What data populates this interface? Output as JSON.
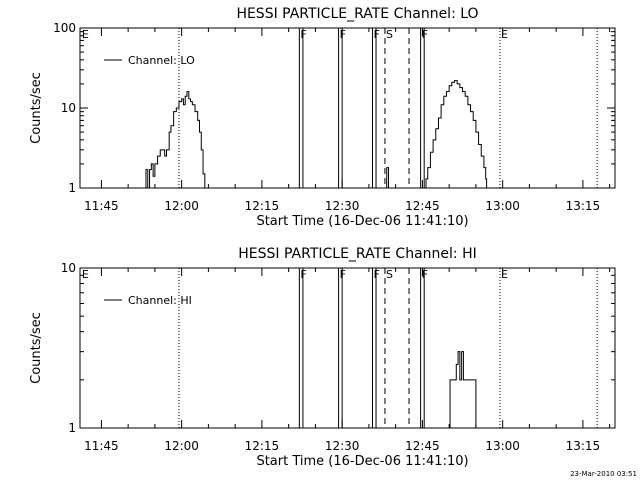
{
  "timestamp": "23-Mar-2010 03:51",
  "chart_data": [
    {
      "type": "line",
      "title": "HESSI PARTICLE_RATE Channel: LO",
      "xlabel": "Start Time (16-Dec-06 11:41:10)",
      "ylabel": "Counts/sec",
      "yscale": "log",
      "xlim": [
        "11:41",
        "13:21"
      ],
      "ylim": [
        1,
        100
      ],
      "x_ticks": [
        "11:45",
        "12:00",
        "12:15",
        "12:30",
        "12:45",
        "13:00",
        "13:15"
      ],
      "y_ticks": [
        {
          "value": 1,
          "label": "1"
        },
        {
          "value": 10,
          "label": "10"
        },
        {
          "value": 100,
          "label": "100"
        }
      ],
      "legend": {
        "position": "top-left",
        "entries": [
          "Channel: LO"
        ]
      },
      "series": [
        {
          "name": "Channel: LO",
          "points": [
            [
              "11:53:00",
              1
            ],
            [
              "11:53:20",
              1.7
            ],
            [
              "11:53:40",
              1
            ],
            [
              "11:54:00",
              1.7
            ],
            [
              "11:54:20",
              2
            ],
            [
              "11:54:40",
              1.4
            ],
            [
              "11:55:00",
              2
            ],
            [
              "11:55:30",
              2.5
            ],
            [
              "11:56:00",
              3
            ],
            [
              "11:56:30",
              3
            ],
            [
              "11:56:50",
              2.5
            ],
            [
              "11:57:10",
              3
            ],
            [
              "11:57:40",
              5
            ],
            [
              "11:58:00",
              6
            ],
            [
              "11:58:30",
              9
            ],
            [
              "11:59:00",
              10
            ],
            [
              "11:59:30",
              12
            ],
            [
              "12:00:00",
              13
            ],
            [
              "12:00:20",
              11
            ],
            [
              "12:00:40",
              14
            ],
            [
              "12:01:00",
              16
            ],
            [
              "12:01:20",
              13
            ],
            [
              "12:01:40",
              12
            ],
            [
              "12:02:00",
              11
            ],
            [
              "12:02:30",
              9
            ],
            [
              "12:03:00",
              7
            ],
            [
              "12:03:20",
              5
            ],
            [
              "12:03:40",
              3
            ],
            [
              "12:04:00",
              1.5
            ],
            [
              "12:04:20",
              1
            ],
            [
              "12:38:00",
              1
            ],
            [
              "12:38:20",
              1.8
            ],
            [
              "12:38:40",
              1
            ],
            [
              "12:45:00",
              1
            ],
            [
              "12:45:40",
              1.3
            ],
            [
              "12:46:00",
              1.8
            ],
            [
              "12:46:30",
              2.8
            ],
            [
              "12:47:00",
              4
            ],
            [
              "12:47:30",
              5.5
            ],
            [
              "12:48:00",
              7.5
            ],
            [
              "12:48:30",
              11
            ],
            [
              "12:49:00",
              14
            ],
            [
              "12:49:30",
              16
            ],
            [
              "12:50:00",
              19
            ],
            [
              "12:50:30",
              21
            ],
            [
              "12:51:00",
              22
            ],
            [
              "12:51:30",
              20
            ],
            [
              "12:52:00",
              18
            ],
            [
              "12:52:30",
              16
            ],
            [
              "12:53:00",
              14
            ],
            [
              "12:53:30",
              11
            ],
            [
              "12:54:00",
              9
            ],
            [
              "12:54:30",
              7
            ],
            [
              "12:55:00",
              5
            ],
            [
              "12:55:30",
              3.5
            ],
            [
              "12:56:00",
              2.5
            ],
            [
              "12:56:30",
              1.8
            ],
            [
              "12:56:50",
              1.3
            ],
            [
              "12:57:00",
              1
            ]
          ]
        }
      ],
      "markers": [
        {
          "time": "11:59:30",
          "style": "dotted",
          "label": ""
        },
        {
          "time": "11:41:10",
          "style": "none",
          "label": "E"
        },
        {
          "time": "12:22:00",
          "style": "solid",
          "label": "F"
        },
        {
          "time": "12:22:40",
          "style": "solid",
          "label": ""
        },
        {
          "time": "12:29:20",
          "style": "solid",
          "label": "F"
        },
        {
          "time": "12:30:00",
          "style": "solid",
          "label": ""
        },
        {
          "time": "12:35:40",
          "style": "solid",
          "label": "F"
        },
        {
          "time": "12:36:20",
          "style": "solid",
          "label": ""
        },
        {
          "time": "12:38:00",
          "style": "dashed",
          "label": "S"
        },
        {
          "time": "12:42:30",
          "style": "dashed",
          "label": ""
        },
        {
          "time": "12:44:40",
          "style": "solid",
          "label": "F"
        },
        {
          "time": "12:45:20",
          "style": "solid",
          "label": ""
        },
        {
          "time": "12:59:30",
          "style": "dotted",
          "label": "E"
        },
        {
          "time": "13:17:40",
          "style": "dotted",
          "label": ""
        }
      ]
    },
    {
      "type": "line",
      "title": "HESSI PARTICLE_RATE Channel: HI",
      "xlabel": "Start Time (16-Dec-06 11:41:10)",
      "ylabel": "Counts/sec",
      "yscale": "log",
      "xlim": [
        "11:41",
        "13:21"
      ],
      "ylim": [
        1,
        10
      ],
      "x_ticks": [
        "11:45",
        "12:00",
        "12:15",
        "12:30",
        "12:45",
        "13:00",
        "13:15"
      ],
      "y_ticks": [
        {
          "value": 1,
          "label": "1"
        },
        {
          "value": 10,
          "label": "10"
        }
      ],
      "legend": {
        "position": "top-left",
        "entries": [
          "Channel: HI"
        ]
      },
      "series": [
        {
          "name": "Channel: HI",
          "points": [
            [
              "12:50:00",
              1
            ],
            [
              "12:50:10",
              2
            ],
            [
              "12:51:00",
              2
            ],
            [
              "12:51:20",
              2.5
            ],
            [
              "12:51:40",
              3
            ],
            [
              "12:52:00",
              2
            ],
            [
              "12:52:20",
              3
            ],
            [
              "12:52:40",
              2
            ],
            [
              "12:54:40",
              2
            ],
            [
              "12:55:00",
              1
            ]
          ]
        }
      ],
      "markers": [
        {
          "time": "11:59:30",
          "style": "dotted",
          "label": ""
        },
        {
          "time": "11:41:10",
          "style": "none",
          "label": "E"
        },
        {
          "time": "12:22:00",
          "style": "solid",
          "label": "F"
        },
        {
          "time": "12:22:40",
          "style": "solid",
          "label": ""
        },
        {
          "time": "12:29:20",
          "style": "solid",
          "label": "F"
        },
        {
          "time": "12:30:00",
          "style": "solid",
          "label": ""
        },
        {
          "time": "12:35:40",
          "style": "solid",
          "label": "F"
        },
        {
          "time": "12:36:20",
          "style": "solid",
          "label": ""
        },
        {
          "time": "12:38:00",
          "style": "dashed",
          "label": "S"
        },
        {
          "time": "12:42:30",
          "style": "dashed",
          "label": ""
        },
        {
          "time": "12:44:40",
          "style": "solid",
          "label": "F"
        },
        {
          "time": "12:45:20",
          "style": "solid",
          "label": ""
        },
        {
          "time": "12:59:30",
          "style": "dotted",
          "label": "E"
        },
        {
          "time": "13:17:40",
          "style": "dotted",
          "label": ""
        }
      ]
    }
  ]
}
